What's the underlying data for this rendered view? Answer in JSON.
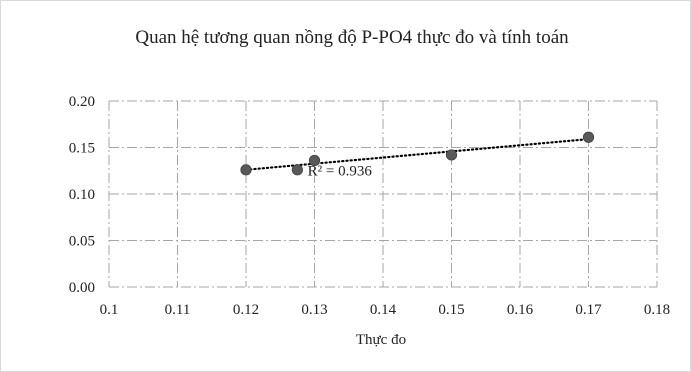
{
  "chart_data": {
    "type": "scatter",
    "title": "Quan hệ tương quan nồng độ P-PO4 thực đo và tính toán",
    "xlabel": "Thực đo",
    "ylabel": "",
    "xlim": [
      0.1,
      0.18
    ],
    "ylim": [
      0.0,
      0.2
    ],
    "x_ticks": [
      "0.1",
      "0.11",
      "0.12",
      "0.13",
      "0.14",
      "0.15",
      "0.16",
      "0.17",
      "0.18"
    ],
    "y_ticks": [
      "0.00",
      "0.05",
      "0.10",
      "0.15",
      "0.20"
    ],
    "grid": true,
    "grid_style": "dash-dot",
    "legend": "none",
    "series": [
      {
        "x": [
          0.12,
          0.1275,
          0.13,
          0.15,
          0.17
        ],
        "y": [
          0.126,
          0.126,
          0.136,
          0.142,
          0.161
        ],
        "color": "#595959"
      }
    ],
    "trendline": {
      "type": "linear",
      "style": "dotted",
      "color": "#000000",
      "x_range": [
        0.12,
        0.17
      ],
      "y_range": [
        0.126,
        0.159
      ]
    },
    "annotations": [
      {
        "text": "R² = 0.936",
        "x": 0.129,
        "y": 0.12
      }
    ]
  }
}
